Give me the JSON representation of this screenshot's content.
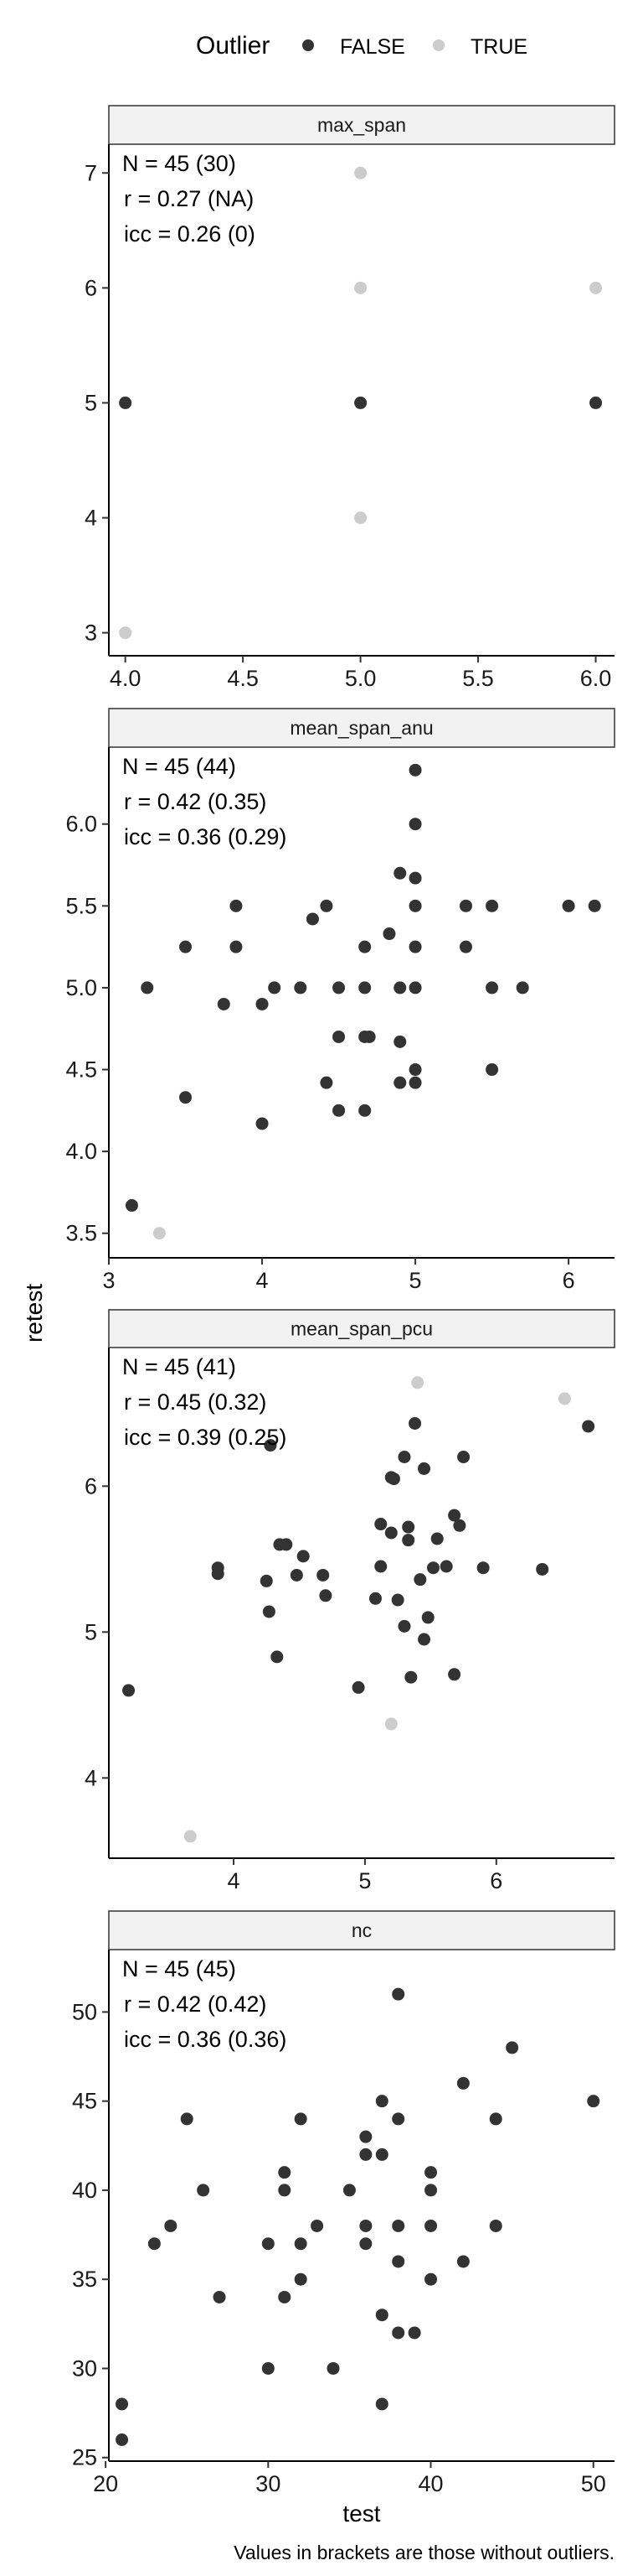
{
  "legend": {
    "title": "Outlier",
    "items": [
      {
        "label": "FALSE",
        "color": "#333333"
      },
      {
        "label": "TRUE",
        "color": "#cccccc"
      }
    ]
  },
  "caption": "Values in brackets are those without outliers.",
  "chart_data": {
    "type": "scatter",
    "xlabel": "test",
    "ylabel": "retest",
    "grid": false,
    "legend_position": "top",
    "colors": {
      "FALSE": "#333333",
      "TRUE": "#cccccc"
    },
    "panels": [
      {
        "title": "max_span",
        "stats": [
          "N = 45 (30)",
          "r = 0.27 (NA)",
          "icc = 0.26 (0)"
        ],
        "xlim": [
          3.93,
          6.08
        ],
        "ylim": [
          2.8,
          7.25
        ],
        "xticks": [
          4.0,
          4.5,
          5.0,
          5.5,
          6.0
        ],
        "xtick_labels": [
          "4.0",
          "4.5",
          "5.0",
          "5.5",
          "6.0"
        ],
        "yticks": [
          3,
          4,
          5,
          6,
          7
        ],
        "ytick_labels": [
          "3",
          "4",
          "5",
          "6",
          "7"
        ],
        "points": [
          {
            "x": 4,
            "y": 5,
            "outlier": false
          },
          {
            "x": 5,
            "y": 5,
            "outlier": false
          },
          {
            "x": 6,
            "y": 5,
            "outlier": false
          },
          {
            "x": 5,
            "y": 7,
            "outlier": true
          },
          {
            "x": 5,
            "y": 6,
            "outlier": true
          },
          {
            "x": 6,
            "y": 6,
            "outlier": true
          },
          {
            "x": 5,
            "y": 4,
            "outlier": true
          },
          {
            "x": 4,
            "y": 3,
            "outlier": true
          }
        ]
      },
      {
        "title": "mean_span_anu",
        "stats": [
          "N = 45 (44)",
          "r = 0.42 (0.35)",
          "icc = 0.36 (0.29)"
        ],
        "xlim": [
          3.0,
          6.3
        ],
        "ylim": [
          3.35,
          6.47
        ],
        "xticks": [
          3,
          4,
          5,
          6
        ],
        "xtick_labels": [
          "3",
          "4",
          "5",
          "6"
        ],
        "yticks": [
          3.5,
          4.0,
          4.5,
          5.0,
          5.5,
          6.0
        ],
        "ytick_labels": [
          "3.5",
          "4.0",
          "4.5",
          "5.0",
          "5.5",
          "6.0"
        ],
        "points": [
          {
            "x": 3.15,
            "y": 3.67,
            "outlier": false
          },
          {
            "x": 3.33,
            "y": 3.5,
            "outlier": true
          },
          {
            "x": 3.25,
            "y": 5.0,
            "outlier": false
          },
          {
            "x": 3.5,
            "y": 5.25,
            "outlier": false
          },
          {
            "x": 3.5,
            "y": 4.33,
            "outlier": false
          },
          {
            "x": 3.75,
            "y": 4.9,
            "outlier": false
          },
          {
            "x": 3.83,
            "y": 5.5,
            "outlier": false
          },
          {
            "x": 3.83,
            "y": 5.25,
            "outlier": false
          },
          {
            "x": 4.0,
            "y": 4.9,
            "outlier": false
          },
          {
            "x": 4.0,
            "y": 4.17,
            "outlier": false
          },
          {
            "x": 4.08,
            "y": 5.0,
            "outlier": false
          },
          {
            "x": 4.25,
            "y": 5.0,
            "outlier": false
          },
          {
            "x": 4.33,
            "y": 5.42,
            "outlier": false
          },
          {
            "x": 4.42,
            "y": 5.5,
            "outlier": false
          },
          {
            "x": 4.42,
            "y": 4.42,
            "outlier": false
          },
          {
            "x": 4.5,
            "y": 5.0,
            "outlier": false
          },
          {
            "x": 4.5,
            "y": 4.7,
            "outlier": false
          },
          {
            "x": 4.5,
            "y": 4.25,
            "outlier": false
          },
          {
            "x": 4.67,
            "y": 5.0,
            "outlier": false
          },
          {
            "x": 4.67,
            "y": 4.7,
            "outlier": false
          },
          {
            "x": 4.67,
            "y": 5.25,
            "outlier": false
          },
          {
            "x": 4.67,
            "y": 4.25,
            "outlier": false
          },
          {
            "x": 4.7,
            "y": 4.7,
            "outlier": false
          },
          {
            "x": 4.83,
            "y": 5.33,
            "outlier": false
          },
          {
            "x": 4.9,
            "y": 5.7,
            "outlier": false
          },
          {
            "x": 4.9,
            "y": 5.0,
            "outlier": false
          },
          {
            "x": 4.9,
            "y": 4.67,
            "outlier": false
          },
          {
            "x": 4.9,
            "y": 4.42,
            "outlier": false
          },
          {
            "x": 5.0,
            "y": 6.33,
            "outlier": false
          },
          {
            "x": 5.0,
            "y": 6.0,
            "outlier": false
          },
          {
            "x": 5.0,
            "y": 5.67,
            "outlier": false
          },
          {
            "x": 5.0,
            "y": 5.5,
            "outlier": false
          },
          {
            "x": 5.0,
            "y": 5.25,
            "outlier": false
          },
          {
            "x": 5.0,
            "y": 5.0,
            "outlier": false
          },
          {
            "x": 5.0,
            "y": 4.5,
            "outlier": false
          },
          {
            "x": 5.0,
            "y": 4.42,
            "outlier": false
          },
          {
            "x": 5.33,
            "y": 5.5,
            "outlier": false
          },
          {
            "x": 5.33,
            "y": 5.25,
            "outlier": false
          },
          {
            "x": 5.5,
            "y": 5.5,
            "outlier": false
          },
          {
            "x": 5.5,
            "y": 5.0,
            "outlier": false
          },
          {
            "x": 5.5,
            "y": 4.5,
            "outlier": false
          },
          {
            "x": 5.7,
            "y": 5.0,
            "outlier": false
          },
          {
            "x": 6.0,
            "y": 5.5,
            "outlier": false
          },
          {
            "x": 6.17,
            "y": 5.5,
            "outlier": false
          }
        ]
      },
      {
        "title": "mean_span_pcu",
        "stats": [
          "N = 45 (41)",
          "r = 0.45 (0.32)",
          "icc = 0.39 (0.25)"
        ],
        "xlim": [
          3.05,
          6.9
        ],
        "ylim": [
          3.45,
          6.95
        ],
        "xticks": [
          4,
          5,
          6
        ],
        "xtick_labels": [
          "4",
          "5",
          "6"
        ],
        "yticks": [
          4,
          5,
          6
        ],
        "ytick_labels": [
          "4",
          "5",
          "6"
        ],
        "points": [
          {
            "x": 3.2,
            "y": 4.6,
            "outlier": false
          },
          {
            "x": 3.67,
            "y": 3.6,
            "outlier": true
          },
          {
            "x": 3.88,
            "y": 5.44,
            "outlier": false
          },
          {
            "x": 3.88,
            "y": 5.4,
            "outlier": false
          },
          {
            "x": 4.25,
            "y": 5.35,
            "outlier": false
          },
          {
            "x": 4.27,
            "y": 5.14,
            "outlier": false
          },
          {
            "x": 4.33,
            "y": 4.83,
            "outlier": false
          },
          {
            "x": 4.35,
            "y": 5.6,
            "outlier": false
          },
          {
            "x": 4.4,
            "y": 5.6,
            "outlier": false
          },
          {
            "x": 4.48,
            "y": 5.39,
            "outlier": false
          },
          {
            "x": 4.53,
            "y": 5.52,
            "outlier": false
          },
          {
            "x": 4.68,
            "y": 5.39,
            "outlier": false
          },
          {
            "x": 4.7,
            "y": 5.25,
            "outlier": false
          },
          {
            "x": 4.28,
            "y": 6.28,
            "outlier": false
          },
          {
            "x": 4.95,
            "y": 4.62,
            "outlier": false
          },
          {
            "x": 5.08,
            "y": 5.23,
            "outlier": false
          },
          {
            "x": 5.12,
            "y": 5.74,
            "outlier": false
          },
          {
            "x": 5.12,
            "y": 5.45,
            "outlier": false
          },
          {
            "x": 5.2,
            "y": 5.68,
            "outlier": false
          },
          {
            "x": 5.2,
            "y": 6.06,
            "outlier": false
          },
          {
            "x": 5.22,
            "y": 6.05,
            "outlier": false
          },
          {
            "x": 5.2,
            "y": 4.37,
            "outlier": true
          },
          {
            "x": 5.25,
            "y": 5.22,
            "outlier": false
          },
          {
            "x": 5.3,
            "y": 5.04,
            "outlier": false
          },
          {
            "x": 5.33,
            "y": 5.63,
            "outlier": false
          },
          {
            "x": 5.33,
            "y": 5.72,
            "outlier": false
          },
          {
            "x": 5.3,
            "y": 6.2,
            "outlier": false
          },
          {
            "x": 5.35,
            "y": 4.69,
            "outlier": false
          },
          {
            "x": 5.38,
            "y": 6.43,
            "outlier": false
          },
          {
            "x": 5.4,
            "y": 6.71,
            "outlier": true
          },
          {
            "x": 5.42,
            "y": 5.36,
            "outlier": false
          },
          {
            "x": 5.45,
            "y": 6.12,
            "outlier": false
          },
          {
            "x": 5.45,
            "y": 4.95,
            "outlier": false
          },
          {
            "x": 5.48,
            "y": 5.1,
            "outlier": false
          },
          {
            "x": 5.52,
            "y": 5.44,
            "outlier": false
          },
          {
            "x": 5.55,
            "y": 5.64,
            "outlier": false
          },
          {
            "x": 5.62,
            "y": 5.45,
            "outlier": false
          },
          {
            "x": 5.68,
            "y": 5.8,
            "outlier": false
          },
          {
            "x": 5.68,
            "y": 4.71,
            "outlier": false
          },
          {
            "x": 5.72,
            "y": 5.73,
            "outlier": false
          },
          {
            "x": 5.75,
            "y": 6.2,
            "outlier": false
          },
          {
            "x": 5.9,
            "y": 5.44,
            "outlier": false
          },
          {
            "x": 6.35,
            "y": 5.43,
            "outlier": false
          },
          {
            "x": 6.52,
            "y": 6.6,
            "outlier": true
          },
          {
            "x": 6.7,
            "y": 6.41,
            "outlier": false
          }
        ]
      },
      {
        "title": "nc",
        "stats": [
          "N = 45 (45)",
          "r = 0.42 (0.42)",
          "icc = 0.36 (0.36)"
        ],
        "xlim": [
          20.2,
          51.3
        ],
        "ylim": [
          24.8,
          53.5
        ],
        "xticks": [
          20,
          30,
          40,
          50
        ],
        "xtick_labels": [
          "20",
          "30",
          "40",
          "50"
        ],
        "yticks": [
          25,
          30,
          35,
          40,
          45,
          50
        ],
        "ytick_labels": [
          "25",
          "30",
          "35",
          "40",
          "45",
          "50"
        ],
        "points": [
          {
            "x": 21,
            "y": 28,
            "outlier": false
          },
          {
            "x": 21,
            "y": 26,
            "outlier": false
          },
          {
            "x": 23,
            "y": 37,
            "outlier": false
          },
          {
            "x": 24,
            "y": 38,
            "outlier": false
          },
          {
            "x": 25,
            "y": 44,
            "outlier": false
          },
          {
            "x": 26,
            "y": 40,
            "outlier": false
          },
          {
            "x": 27,
            "y": 34,
            "outlier": false
          },
          {
            "x": 30,
            "y": 37,
            "outlier": false
          },
          {
            "x": 30,
            "y": 30,
            "outlier": false
          },
          {
            "x": 31,
            "y": 41,
            "outlier": false
          },
          {
            "x": 31,
            "y": 40,
            "outlier": false
          },
          {
            "x": 31,
            "y": 34,
            "outlier": false
          },
          {
            "x": 32,
            "y": 44,
            "outlier": false
          },
          {
            "x": 32,
            "y": 37,
            "outlier": false
          },
          {
            "x": 32,
            "y": 35,
            "outlier": false
          },
          {
            "x": 33,
            "y": 38,
            "outlier": false
          },
          {
            "x": 34,
            "y": 30,
            "outlier": false
          },
          {
            "x": 35,
            "y": 40,
            "outlier": false
          },
          {
            "x": 36,
            "y": 43,
            "outlier": false
          },
          {
            "x": 36,
            "y": 42,
            "outlier": false
          },
          {
            "x": 36,
            "y": 38,
            "outlier": false
          },
          {
            "x": 36,
            "y": 37,
            "outlier": false
          },
          {
            "x": 37,
            "y": 45,
            "outlier": false
          },
          {
            "x": 37,
            "y": 42,
            "outlier": false
          },
          {
            "x": 37,
            "y": 33,
            "outlier": false
          },
          {
            "x": 37,
            "y": 28,
            "outlier": false
          },
          {
            "x": 38,
            "y": 51,
            "outlier": false
          },
          {
            "x": 38,
            "y": 44,
            "outlier": false
          },
          {
            "x": 38,
            "y": 38,
            "outlier": false
          },
          {
            "x": 38,
            "y": 36,
            "outlier": false
          },
          {
            "x": 38,
            "y": 32,
            "outlier": false
          },
          {
            "x": 39,
            "y": 32,
            "outlier": false
          },
          {
            "x": 40,
            "y": 41,
            "outlier": false
          },
          {
            "x": 40,
            "y": 40,
            "outlier": false
          },
          {
            "x": 40,
            "y": 38,
            "outlier": false
          },
          {
            "x": 40,
            "y": 35,
            "outlier": false
          },
          {
            "x": 42,
            "y": 46,
            "outlier": false
          },
          {
            "x": 42,
            "y": 36,
            "outlier": false
          },
          {
            "x": 44,
            "y": 44,
            "outlier": false
          },
          {
            "x": 44,
            "y": 38,
            "outlier": false
          },
          {
            "x": 45,
            "y": 48,
            "outlier": false
          },
          {
            "x": 50,
            "y": 45,
            "outlier": false
          }
        ]
      }
    ]
  }
}
